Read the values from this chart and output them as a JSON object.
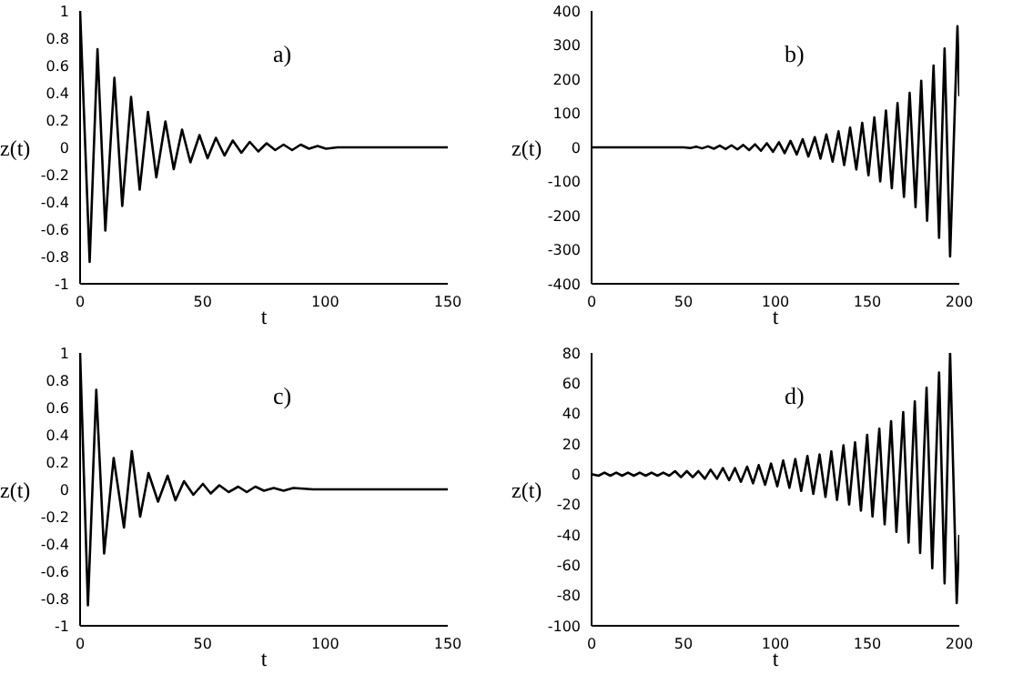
{
  "chart_data": [
    {
      "type": "line",
      "title": "a)",
      "xlabel": "t",
      "ylabel": "z(t)",
      "xlim": [
        0,
        150
      ],
      "ylim": [
        -1,
        1
      ],
      "xticks": [
        0,
        50,
        100,
        150
      ],
      "yticks": [
        -1,
        -0.8,
        -0.6,
        -0.4,
        -0.2,
        0,
        0.2,
        0.4,
        0.6,
        0.8,
        1
      ],
      "series": [
        {
          "color": "#000000",
          "x": [
            0,
            3.9,
            7.1,
            10.3,
            14,
            17.2,
            20.8,
            24.3,
            27.7,
            31.1,
            34.8,
            38.2,
            41.6,
            45,
            48.7,
            52,
            55.4,
            58.9,
            62.3,
            65.8,
            69.2,
            72.7,
            76.1,
            79.6,
            83,
            86.5,
            90,
            93.4,
            96.9,
            100.3,
            105,
            150
          ],
          "values": [
            1,
            -0.84,
            0.72,
            -0.61,
            0.51,
            -0.43,
            0.37,
            -0.31,
            0.26,
            -0.22,
            0.19,
            -0.16,
            0.13,
            -0.11,
            0.09,
            -0.08,
            0.07,
            -0.06,
            0.05,
            -0.04,
            0.04,
            -0.03,
            0.03,
            -0.02,
            0.02,
            -0.02,
            0.02,
            -0.01,
            0.01,
            -0.01,
            0,
            0
          ]
        }
      ]
    },
    {
      "type": "line",
      "title": "b)",
      "xlabel": "t",
      "ylabel": "z(t)",
      "xlim": [
        0,
        200
      ],
      "ylim": [
        -400,
        400
      ],
      "xticks": [
        0,
        50,
        100,
        150,
        200
      ],
      "yticks": [
        -400,
        -300,
        -200,
        -100,
        0,
        100,
        200,
        300,
        400
      ],
      "series": [
        {
          "color": "#000000",
          "x": [
            0,
            50,
            53.7,
            56.9,
            60.1,
            63.3,
            66.5,
            69.7,
            72.9,
            76.1,
            79.3,
            82.5,
            85.7,
            88.9,
            92.1,
            95.3,
            98.7,
            101.9,
            105,
            108.2,
            111.6,
            114.8,
            117.9,
            121.4,
            124.5,
            127.7,
            131.1,
            134.3,
            137.4,
            140.6,
            144,
            147.2,
            150.6,
            153.8,
            157,
            160.1,
            163.3,
            166.4,
            169.9,
            173,
            176.2,
            179.3,
            182.5,
            186,
            189,
            192,
            195,
            199,
            200
          ],
          "values": [
            0,
            0,
            -2,
            2,
            -3,
            3,
            -4,
            5,
            -5,
            6,
            -6,
            7,
            -8,
            9,
            -10,
            12,
            -13,
            15,
            -17,
            19,
            -21,
            24,
            -27,
            30,
            -33,
            38,
            -42,
            47,
            -52,
            58,
            -65,
            72,
            -82,
            88,
            -100,
            108,
            -120,
            130,
            -145,
            160,
            -175,
            195,
            -215,
            240,
            -265,
            290,
            -320,
            355,
            150
          ]
        }
      ]
    },
    {
      "type": "line",
      "title": "c)",
      "xlabel": "t",
      "ylabel": "z(t)",
      "xlim": [
        0,
        150
      ],
      "ylim": [
        -1,
        1
      ],
      "xticks": [
        0,
        50,
        100,
        150
      ],
      "yticks": [
        -1,
        -0.8,
        -0.6,
        -0.4,
        -0.2,
        0,
        0.2,
        0.4,
        0.6,
        0.8,
        1
      ],
      "series": [
        {
          "color": "#000000",
          "x": [
            0,
            3.2,
            6.6,
            9.8,
            13.7,
            17.9,
            21.1,
            24.5,
            27.9,
            31.8,
            35.7,
            38.9,
            42.4,
            46.2,
            50.1,
            53.3,
            56.8,
            60.6,
            64.5,
            68,
            71.5,
            75,
            79,
            83,
            87,
            95,
            150
          ],
          "values": [
            1,
            -0.85,
            0.73,
            -0.47,
            0.23,
            -0.28,
            0.28,
            -0.2,
            0.12,
            -0.09,
            0.1,
            -0.08,
            0.06,
            -0.04,
            0.04,
            -0.03,
            0.03,
            -0.02,
            0.02,
            -0.02,
            0.02,
            -0.01,
            0.01,
            -0.01,
            0.01,
            0,
            0
          ]
        }
      ]
    },
    {
      "type": "line",
      "title": "d)",
      "xlabel": "t",
      "ylabel": "z(t)",
      "xlim": [
        0,
        200
      ],
      "ylim": [
        -100,
        80
      ],
      "xticks": [
        0,
        50,
        100,
        150,
        200
      ],
      "yticks": [
        -100,
        -80,
        -60,
        -40,
        -20,
        0,
        20,
        40,
        60,
        80
      ],
      "series": [
        {
          "color": "#000000",
          "x": [
            0,
            3.8,
            7,
            10.2,
            13.4,
            16.6,
            19.8,
            23,
            26.2,
            29.4,
            32.6,
            35.8,
            39,
            42.2,
            45.4,
            48.6,
            51.8,
            55,
            58.1,
            61.6,
            64.7,
            68.2,
            71.4,
            74.8,
            78,
            81.2,
            84.6,
            87.8,
            90.9,
            94.4,
            97.6,
            101,
            104.2,
            107.6,
            110.8,
            114,
            117.4,
            120.6,
            124,
            127.2,
            130.4,
            133.5,
            137,
            140.1,
            143.3,
            146.5,
            149.9,
            152.8,
            156.5,
            159.4,
            162.9,
            165.8,
            169.5,
            172.4,
            175.8,
            178.7,
            182.2,
            185.3,
            189,
            192,
            195,
            198.6,
            200
          ],
          "values": [
            0,
            -1,
            1,
            -1,
            1,
            -1,
            1,
            -1,
            1,
            -1,
            1,
            -1,
            1,
            -1,
            2,
            -2,
            2,
            -2,
            2,
            -3,
            3,
            -3,
            4,
            -4,
            4,
            -5,
            5,
            -6,
            6,
            -7,
            7,
            -8,
            9,
            -9,
            10,
            -11,
            12,
            -13,
            13,
            -15,
            15,
            -17,
            19,
            -20,
            21,
            -24,
            26,
            -28,
            30,
            -33,
            35,
            -38,
            41,
            -45,
            48,
            -52,
            57,
            -62,
            67,
            -72,
            80,
            -85,
            -40
          ]
        }
      ]
    }
  ]
}
